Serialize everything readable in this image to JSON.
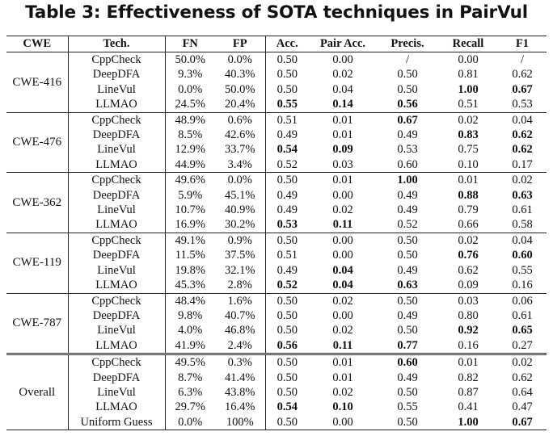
{
  "caption": "Table 3: Effectiveness of SOTA techniques in PairVul",
  "columns": [
    "CWE",
    "Tech.",
    "FN",
    "FP",
    "Acc.",
    "Pair Acc.",
    "Precis.",
    "Recall",
    "F1"
  ],
  "groups": [
    {
      "name": "CWE-416",
      "rows": [
        {
          "tech": "CppCheck",
          "fn": "50.0%",
          "fp": "0.0%",
          "acc": "0.50",
          "pair": "0.00",
          "prec": "/",
          "rec": "0.00",
          "f1": "/"
        },
        {
          "tech": "DeepDFA",
          "fn": "9.3%",
          "fp": "40.3%",
          "acc": "0.50",
          "pair": "0.02",
          "prec": "0.50",
          "rec": "0.81",
          "f1": "0.62"
        },
        {
          "tech": "LineVul",
          "fn": "0.0%",
          "fp": "50.0%",
          "acc": "0.50",
          "pair": "0.04",
          "prec": "0.50",
          "rec": "1.00",
          "f1": "0.67"
        },
        {
          "tech": "LLMAO",
          "fn": "24.5%",
          "fp": "20.4%",
          "acc": "0.55",
          "pair": "0.14",
          "prec": "0.56",
          "rec": "0.51",
          "f1": "0.53"
        }
      ]
    },
    {
      "name": "CWE-476",
      "rows": [
        {
          "tech": "CppCheck",
          "fn": "48.9%",
          "fp": "0.6%",
          "acc": "0.51",
          "pair": "0.01",
          "prec": "0.67",
          "rec": "0.02",
          "f1": "0.04"
        },
        {
          "tech": "DeepDFA",
          "fn": "8.5%",
          "fp": "42.6%",
          "acc": "0.49",
          "pair": "0.01",
          "prec": "0.49",
          "rec": "0.83",
          "f1": "0.62"
        },
        {
          "tech": "LineVul",
          "fn": "12.9%",
          "fp": "33.7%",
          "acc": "0.54",
          "pair": "0.09",
          "prec": "0.53",
          "rec": "0.75",
          "f1": "0.62"
        },
        {
          "tech": "LLMAO",
          "fn": "44.9%",
          "fp": "3.4%",
          "acc": "0.52",
          "pair": "0.03",
          "prec": "0.60",
          "rec": "0.10",
          "f1": "0.17"
        }
      ]
    },
    {
      "name": "CWE-362",
      "rows": [
        {
          "tech": "CppCheck",
          "fn": "49.6%",
          "fp": "0.0%",
          "acc": "0.50",
          "pair": "0.01",
          "prec": "1.00",
          "rec": "0.01",
          "f1": "0.02"
        },
        {
          "tech": "DeepDFA",
          "fn": "5.9%",
          "fp": "45.1%",
          "acc": "0.49",
          "pair": "0.00",
          "prec": "0.49",
          "rec": "0.88",
          "f1": "0.63"
        },
        {
          "tech": "LineVul",
          "fn": "10.7%",
          "fp": "40.9%",
          "acc": "0.49",
          "pair": "0.02",
          "prec": "0.49",
          "rec": "0.79",
          "f1": "0.61"
        },
        {
          "tech": "LLMAO",
          "fn": "16.9%",
          "fp": "30.2%",
          "acc": "0.53",
          "pair": "0.11",
          "prec": "0.52",
          "rec": "0.66",
          "f1": "0.58"
        }
      ]
    },
    {
      "name": "CWE-119",
      "rows": [
        {
          "tech": "CppCheck",
          "fn": "49.1%",
          "fp": "0.9%",
          "acc": "0.50",
          "pair": "0.00",
          "prec": "0.50",
          "rec": "0.02",
          "f1": "0.04"
        },
        {
          "tech": "DeepDFA",
          "fn": "11.5%",
          "fp": "37.5%",
          "acc": "0.51",
          "pair": "0.00",
          "prec": "0.50",
          "rec": "0.76",
          "f1": "0.60"
        },
        {
          "tech": "LineVul",
          "fn": "19.8%",
          "fp": "32.1%",
          "acc": "0.49",
          "pair": "0.04",
          "prec": "0.49",
          "rec": "0.62",
          "f1": "0.55"
        },
        {
          "tech": "LLMAO",
          "fn": "45.3%",
          "fp": "2.8%",
          "acc": "0.52",
          "pair": "0.04",
          "prec": "0.63",
          "rec": "0.09",
          "f1": "0.16"
        }
      ]
    },
    {
      "name": "CWE-787",
      "rows": [
        {
          "tech": "CppCheck",
          "fn": "48.4%",
          "fp": "1.6%",
          "acc": "0.50",
          "pair": "0.02",
          "prec": "0.50",
          "rec": "0.03",
          "f1": "0.06"
        },
        {
          "tech": "DeepDFA",
          "fn": "9.8%",
          "fp": "40.7%",
          "acc": "0.50",
          "pair": "0.00",
          "prec": "0.49",
          "rec": "0.80",
          "f1": "0.61"
        },
        {
          "tech": "LineVul",
          "fn": "4.0%",
          "fp": "46.8%",
          "acc": "0.50",
          "pair": "0.02",
          "prec": "0.50",
          "rec": "0.92",
          "f1": "0.65"
        },
        {
          "tech": "LLMAO",
          "fn": "41.9%",
          "fp": "2.4%",
          "acc": "0.56",
          "pair": "0.11",
          "prec": "0.77",
          "rec": "0.16",
          "f1": "0.27"
        }
      ]
    },
    {
      "name": "Overall",
      "rows": [
        {
          "tech": "CppCheck",
          "fn": "49.5%",
          "fp": "0.3%",
          "acc": "0.50",
          "pair": "0.01",
          "prec": "0.60",
          "rec": "0.01",
          "f1": "0.02"
        },
        {
          "tech": "DeepDFA",
          "fn": "8.7%",
          "fp": "41.4%",
          "acc": "0.50",
          "pair": "0.01",
          "prec": "0.49",
          "rec": "0.82",
          "f1": "0.62"
        },
        {
          "tech": "LineVul",
          "fn": "6.3%",
          "fp": "43.8%",
          "acc": "0.50",
          "pair": "0.02",
          "prec": "0.50",
          "rec": "0.87",
          "f1": "0.64"
        },
        {
          "tech": "LLMAO",
          "fn": "29.7%",
          "fp": "16.4%",
          "acc": "0.54",
          "pair": "0.10",
          "prec": "0.55",
          "rec": "0.41",
          "f1": "0.47"
        },
        {
          "tech": "Uniform Guess",
          "fn": "0.0%",
          "fp": "100%",
          "acc": "0.50",
          "pair": "0.00",
          "prec": "0.50",
          "rec": "1.00",
          "f1": "0.67"
        }
      ]
    }
  ],
  "bold_cells": [
    "0.2.rec",
    "0.2.f1",
    "0.3.acc",
    "0.3.pair",
    "0.3.prec",
    "1.0.prec",
    "1.1.rec",
    "1.1.f1",
    "1.2.acc",
    "1.2.pair",
    "1.2.f1",
    "2.0.prec",
    "2.1.rec",
    "2.1.f1",
    "2.3.acc",
    "2.3.pair",
    "3.1.rec",
    "3.1.f1",
    "3.2.pair",
    "3.3.acc",
    "3.3.pair",
    "3.3.prec",
    "4.2.rec",
    "4.2.f1",
    "4.3.acc",
    "4.3.pair",
    "4.3.prec",
    "5.0.prec",
    "5.3.acc",
    "5.3.pair",
    "5.4.rec",
    "5.4.f1"
  ]
}
